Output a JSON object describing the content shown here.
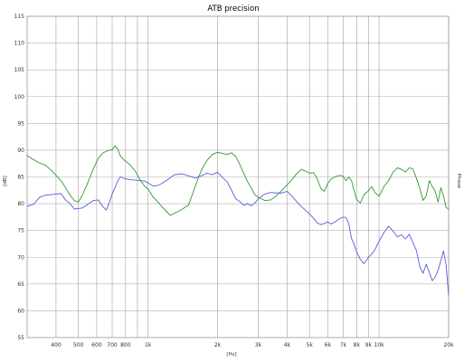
{
  "chart_data": {
    "type": "line",
    "title": "ATB precision",
    "xlabel": "[Hz]",
    "ylabel": "[dB]",
    "ylabel_right": "Phase",
    "x_scale": "log",
    "xlim": [
      300,
      20000
    ],
    "ylim": [
      55,
      115
    ],
    "grid": true,
    "x_ticks": [
      {
        "value": 400,
        "label": "400"
      },
      {
        "value": 500,
        "label": "500"
      },
      {
        "value": 600,
        "label": "600"
      },
      {
        "value": 700,
        "label": "700"
      },
      {
        "value": 800,
        "label": "800"
      },
      {
        "value": 1000,
        "label": "1k"
      },
      {
        "value": 2000,
        "label": "2k"
      },
      {
        "value": 3000,
        "label": "3k"
      },
      {
        "value": 4000,
        "label": "4k"
      },
      {
        "value": 5000,
        "label": "5k"
      },
      {
        "value": 6000,
        "label": "6k"
      },
      {
        "value": 7000,
        "label": "7k"
      },
      {
        "value": 8000,
        "label": "8k"
      },
      {
        "value": 9000,
        "label": "9k"
      },
      {
        "value": 10000,
        "label": "10k"
      },
      {
        "value": 20000,
        "label": "20k"
      }
    ],
    "x_minor_gridlines": [
      900
    ],
    "y_ticks": [
      {
        "value": 60,
        "label": "60"
      },
      {
        "value": 65,
        "label": "65"
      },
      {
        "value": 70,
        "label": "70"
      },
      {
        "value": 75,
        "label": "75"
      },
      {
        "value": 80,
        "label": "80"
      },
      {
        "value": 85,
        "label": "85"
      },
      {
        "value": 90,
        "label": "90"
      },
      {
        "value": 95,
        "label": "95"
      },
      {
        "value": 100,
        "label": "100"
      },
      {
        "value": 105,
        "label": "105"
      },
      {
        "value": 110,
        "label": "110"
      },
      {
        "value": 115,
        "label": "115"
      }
    ],
    "y_extra_labels": [
      {
        "value": 55,
        "label": "55"
      }
    ],
    "series": [
      {
        "color": "#2e9a2e",
        "points": [
          [
            300,
            89
          ],
          [
            320,
            88.2
          ],
          [
            340,
            87.6
          ],
          [
            360,
            87.2
          ],
          [
            380,
            86.3
          ],
          [
            400,
            85.3
          ],
          [
            420,
            84.3
          ],
          [
            440,
            83
          ],
          [
            460,
            81.6
          ],
          [
            480,
            80.6
          ],
          [
            500,
            80.3
          ],
          [
            520,
            81.6
          ],
          [
            550,
            84
          ],
          [
            580,
            86.5
          ],
          [
            610,
            88.5
          ],
          [
            640,
            89.5
          ],
          [
            670,
            89.9
          ],
          [
            700,
            90.1
          ],
          [
            720,
            90.8
          ],
          [
            740,
            90.2
          ],
          [
            760,
            88.9
          ],
          [
            790,
            88.1
          ],
          [
            830,
            87.4
          ],
          [
            880,
            86.1
          ],
          [
            930,
            84.3
          ],
          [
            970,
            83.2
          ],
          [
            1000,
            82.8
          ],
          [
            1050,
            81.3
          ],
          [
            1100,
            80.4
          ],
          [
            1150,
            79.4
          ],
          [
            1200,
            78.6
          ],
          [
            1250,
            77.8
          ],
          [
            1300,
            78.2
          ],
          [
            1400,
            78.9
          ],
          [
            1500,
            79.8
          ],
          [
            1600,
            83.2
          ],
          [
            1700,
            86.2
          ],
          [
            1800,
            88.1
          ],
          [
            1900,
            89.2
          ],
          [
            2000,
            89.6
          ],
          [
            2100,
            89.4
          ],
          [
            2200,
            89.2
          ],
          [
            2300,
            89.5
          ],
          [
            2400,
            88.8
          ],
          [
            2500,
            87.3
          ],
          [
            2600,
            85.6
          ],
          [
            2700,
            84.1
          ],
          [
            2800,
            82.9
          ],
          [
            2900,
            81.7
          ],
          [
            3000,
            81.2
          ],
          [
            3200,
            80.6
          ],
          [
            3400,
            80.7
          ],
          [
            3600,
            81.5
          ],
          [
            3800,
            82.5
          ],
          [
            4000,
            83.5
          ],
          [
            4200,
            84.5
          ],
          [
            4400,
            85.6
          ],
          [
            4600,
            86.4
          ],
          [
            4800,
            86.1
          ],
          [
            5000,
            85.7
          ],
          [
            5200,
            85.8
          ],
          [
            5400,
            84.7
          ],
          [
            5600,
            82.8
          ],
          [
            5800,
            82.3
          ],
          [
            6000,
            83.8
          ],
          [
            6200,
            84.6
          ],
          [
            6500,
            85.1
          ],
          [
            6800,
            85.3
          ],
          [
            7000,
            85.1
          ],
          [
            7200,
            84.3
          ],
          [
            7400,
            85
          ],
          [
            7600,
            84.3
          ],
          [
            7800,
            82.4
          ],
          [
            8000,
            80.8
          ],
          [
            8300,
            80.1
          ],
          [
            8600,
            81.7
          ],
          [
            9000,
            82.4
          ],
          [
            9300,
            83.2
          ],
          [
            9600,
            82.1
          ],
          [
            10000,
            81.4
          ],
          [
            10500,
            83.2
          ],
          [
            11000,
            84.3
          ],
          [
            11500,
            85.9
          ],
          [
            12000,
            86.7
          ],
          [
            12500,
            86.4
          ],
          [
            13000,
            85.9
          ],
          [
            13500,
            86.7
          ],
          [
            14000,
            86.5
          ],
          [
            14500,
            84.8
          ],
          [
            15000,
            82.9
          ],
          [
            15500,
            80.6
          ],
          [
            16000,
            81.5
          ],
          [
            16500,
            84.3
          ],
          [
            17000,
            83.2
          ],
          [
            17500,
            82.3
          ],
          [
            18000,
            80.3
          ],
          [
            18500,
            83
          ],
          [
            19000,
            81.5
          ],
          [
            19500,
            79.3
          ],
          [
            20000,
            79
          ]
        ]
      },
      {
        "color": "#5b5bdc",
        "points": [
          [
            300,
            79.5
          ],
          [
            320,
            79.9
          ],
          [
            340,
            81.2
          ],
          [
            360,
            81.6
          ],
          [
            380,
            81.7
          ],
          [
            400,
            81.8
          ],
          [
            420,
            81.9
          ],
          [
            440,
            80.7
          ],
          [
            460,
            80
          ],
          [
            480,
            79
          ],
          [
            500,
            79.1
          ],
          [
            520,
            79.2
          ],
          [
            550,
            79.9
          ],
          [
            580,
            80.6
          ],
          [
            610,
            80.7
          ],
          [
            640,
            79.4
          ],
          [
            660,
            78.8
          ],
          [
            680,
            80.2
          ],
          [
            700,
            81.8
          ],
          [
            720,
            83
          ],
          [
            740,
            84.3
          ],
          [
            760,
            85
          ],
          [
            790,
            84.7
          ],
          [
            830,
            84.5
          ],
          [
            880,
            84.4
          ],
          [
            930,
            84.3
          ],
          [
            970,
            84.2
          ],
          [
            1000,
            83.9
          ],
          [
            1050,
            83.3
          ],
          [
            1100,
            83.4
          ],
          [
            1150,
            83.8
          ],
          [
            1200,
            84.3
          ],
          [
            1300,
            85.4
          ],
          [
            1400,
            85.6
          ],
          [
            1500,
            85.2
          ],
          [
            1600,
            84.8
          ],
          [
            1700,
            85.2
          ],
          [
            1800,
            85.7
          ],
          [
            1900,
            85.4
          ],
          [
            2000,
            85.9
          ],
          [
            2100,
            84.9
          ],
          [
            2200,
            84.1
          ],
          [
            2300,
            82.5
          ],
          [
            2400,
            80.9
          ],
          [
            2500,
            80.4
          ],
          [
            2600,
            79.7
          ],
          [
            2700,
            80
          ],
          [
            2800,
            79.6
          ],
          [
            2900,
            80.1
          ],
          [
            3000,
            80.9
          ],
          [
            3200,
            81.8
          ],
          [
            3400,
            82.1
          ],
          [
            3600,
            82
          ],
          [
            3800,
            82
          ],
          [
            4000,
            82.3
          ],
          [
            4200,
            81.4
          ],
          [
            4400,
            80.4
          ],
          [
            4600,
            79.5
          ],
          [
            4800,
            78.8
          ],
          [
            5000,
            78.1
          ],
          [
            5200,
            77.3
          ],
          [
            5400,
            76.4
          ],
          [
            5600,
            76.1
          ],
          [
            5800,
            76.3
          ],
          [
            6000,
            76.6
          ],
          [
            6200,
            76.2
          ],
          [
            6500,
            76.7
          ],
          [
            6800,
            77.3
          ],
          [
            7000,
            77.5
          ],
          [
            7200,
            77.4
          ],
          [
            7400,
            76.2
          ],
          [
            7600,
            73.5
          ],
          [
            7800,
            72.4
          ],
          [
            8000,
            71
          ],
          [
            8300,
            69.6
          ],
          [
            8600,
            68.8
          ],
          [
            9000,
            70
          ],
          [
            9300,
            70.6
          ],
          [
            9600,
            71.4
          ],
          [
            10000,
            73
          ],
          [
            10500,
            74.6
          ],
          [
            11000,
            75.8
          ],
          [
            11500,
            74.9
          ],
          [
            12000,
            73.8
          ],
          [
            12500,
            74.2
          ],
          [
            13000,
            73.4
          ],
          [
            13500,
            74.3
          ],
          [
            14000,
            72.8
          ],
          [
            14500,
            71.3
          ],
          [
            15000,
            68.3
          ],
          [
            15500,
            67
          ],
          [
            16000,
            68.7
          ],
          [
            16500,
            67.2
          ],
          [
            17000,
            65.6
          ],
          [
            17500,
            66.3
          ],
          [
            18000,
            67.6
          ],
          [
            18500,
            69.3
          ],
          [
            19000,
            71.2
          ],
          [
            19500,
            68.6
          ],
          [
            20000,
            62.9
          ]
        ]
      }
    ]
  }
}
